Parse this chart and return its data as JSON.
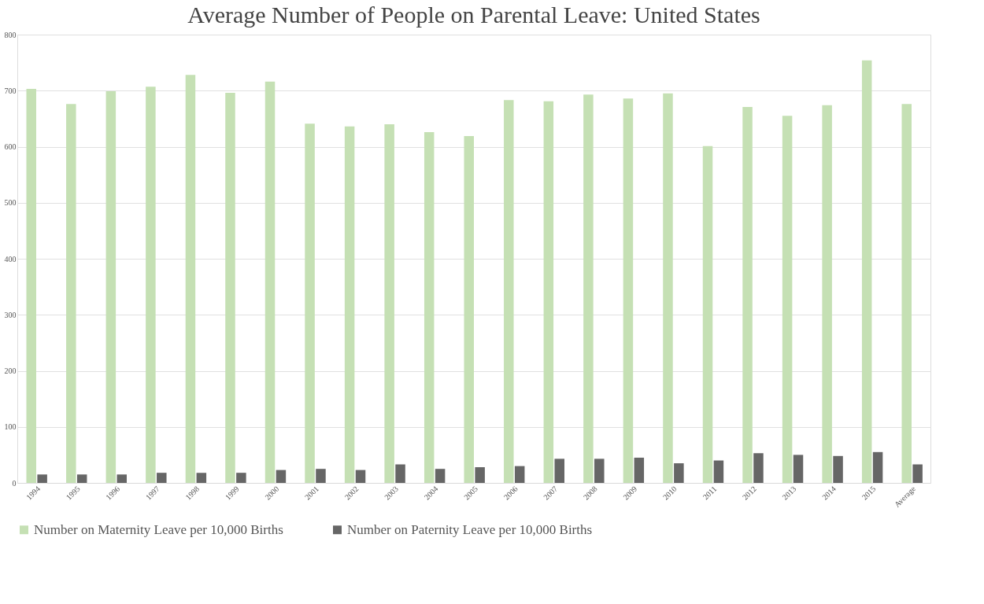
{
  "chart_data": {
    "type": "bar",
    "title": "Average Number of People on Parental Leave: United States",
    "categories": [
      "1994",
      "1995",
      "1996",
      "1997",
      "1998",
      "1999",
      "2000",
      "2001",
      "2002",
      "2003",
      "2004",
      "2005",
      "2006",
      "2007",
      "2008",
      "2009",
      "2010",
      "2011",
      "2012",
      "2013",
      "2014",
      "2015",
      "Average"
    ],
    "series": [
      {
        "name": "Number on Maternity Leave per 10,000 Births",
        "color": "#c5e0b4",
        "values": [
          703,
          676,
          699,
          707,
          728,
          696,
          716,
          641,
          636,
          640,
          626,
          619,
          683,
          681,
          693,
          686,
          695,
          601,
          671,
          655,
          674,
          754,
          676
        ]
      },
      {
        "name": "Number on Paternity Leave per 10,000 Births",
        "color": "#666666",
        "values": [
          15,
          15,
          15,
          18,
          18,
          18,
          23,
          25,
          23,
          33,
          25,
          28,
          30,
          43,
          43,
          45,
          35,
          40,
          53,
          50,
          48,
          55,
          33
        ]
      }
    ],
    "ylim": [
      0,
      800
    ],
    "yticks": [
      0,
      100,
      200,
      300,
      400,
      500,
      600,
      700,
      800
    ],
    "grid": "y",
    "legend": "bottom"
  }
}
